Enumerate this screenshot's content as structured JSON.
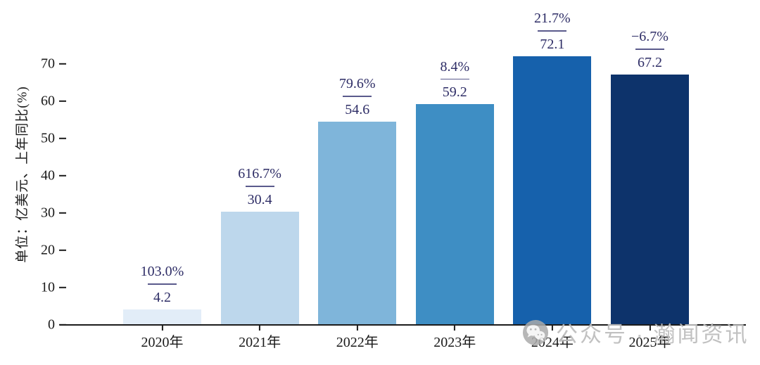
{
  "chart_data": {
    "type": "bar",
    "categories": [
      "2020年",
      "2021年",
      "2022年",
      "2023年",
      "2024年",
      "2025年"
    ],
    "values": [
      4.2,
      30.4,
      54.6,
      59.2,
      72.1,
      67.2
    ],
    "value_labels": [
      "4.2",
      "30.4",
      "54.6",
      "59.2",
      "72.1",
      "67.2"
    ],
    "growth_labels": [
      "103.0%",
      "616.7%",
      "79.6%",
      "8.4%",
      "21.7%",
      "−6.7%"
    ],
    "bar_colors": [
      "#e2edf8",
      "#bdd7ec",
      "#7fb5da",
      "#3e8ec4",
      "#1661ac",
      "#0d336b"
    ],
    "title": "",
    "xlabel": "",
    "ylabel": "单位：亿美元、上年同比(%)",
    "yticks": [
      0,
      10,
      20,
      30,
      40,
      50,
      60,
      70
    ],
    "ylim": [
      0,
      77
    ],
    "grid": false,
    "legend": "none",
    "annotation_color": "#2e2d66",
    "axis_color": "#1c1c1c"
  },
  "watermark": {
    "icon": "wechat-icon",
    "text": "公众号 · 瀚闻资讯",
    "color": "#bcbcbc"
  }
}
